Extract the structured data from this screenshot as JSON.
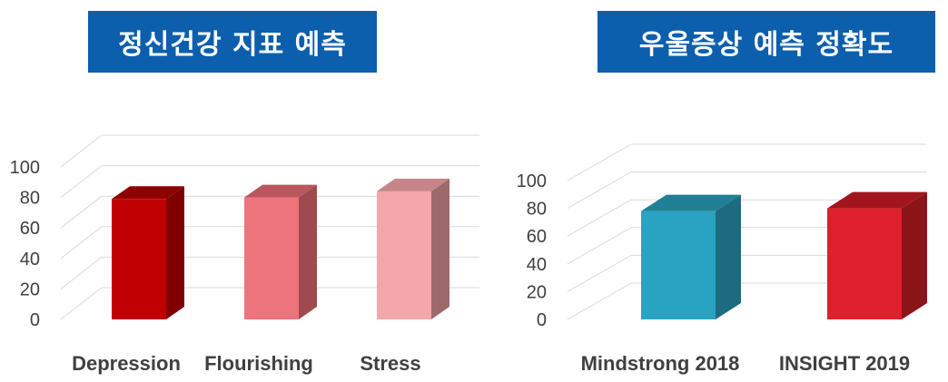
{
  "chart_data": [
    {
      "type": "bar",
      "title": "정신건강 지표 예측",
      "categories": [
        "Depression",
        "Flourishing",
        "Stress"
      ],
      "values": [
        79,
        80,
        84
      ],
      "ylim": [
        0,
        100
      ],
      "yticks": [
        "0",
        "20",
        "40",
        "60",
        "80",
        "100"
      ],
      "grid": true,
      "colors": {
        "front": [
          "#c00000",
          "#ed747c",
          "#f4a6aa"
        ],
        "side": [
          "#800000",
          "#9e4a4f",
          "#9d6a6c"
        ],
        "top": [
          "#8e0000",
          "#b8585e",
          "#c5868a"
        ]
      }
    },
    {
      "type": "bar",
      "title": "우울증상 예측 정확도",
      "categories": [
        "Mindstrong 2018",
        "INSIGHT 2019"
      ],
      "values": [
        78,
        80
      ],
      "ylim": [
        0,
        100
      ],
      "yticks": [
        "0",
        "20",
        "40",
        "60",
        "80",
        "100"
      ],
      "grid": true,
      "colors": {
        "front": [
          "#2aa2c2",
          "#de202c"
        ],
        "side": [
          "#1d6b80",
          "#8b1419"
        ],
        "top": [
          "#1f7f95",
          "#a3151d"
        ]
      }
    }
  ]
}
